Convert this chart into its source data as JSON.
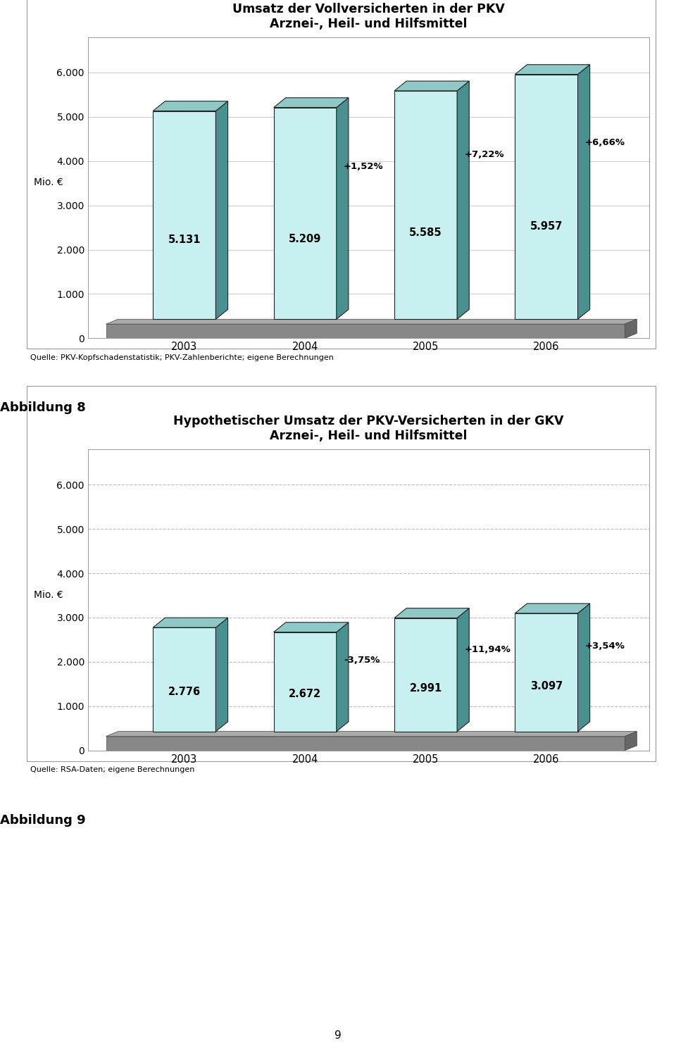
{
  "chart1": {
    "title_line1": "Umsatz der Vollversicherten in der PKV",
    "title_line2": "Arznei-, Heil- und Hilfsmittel",
    "years": [
      "2003",
      "2004",
      "2005",
      "2006"
    ],
    "values": [
      5131,
      5209,
      5585,
      5957
    ],
    "pct_labels": [
      "",
      "+1,52%",
      "+7,22%",
      "+6,66%"
    ],
    "val_labels": [
      "5.131",
      "5.209",
      "5.585",
      "5.957"
    ],
    "ylabel": "Mio. €",
    "yticks": [
      0,
      1000,
      2000,
      3000,
      4000,
      5000,
      6000
    ],
    "ytick_labels": [
      "0",
      "1.000",
      "2.000",
      "3.000",
      "4.000",
      "5.000",
      "6.000"
    ],
    "ylim_max": 6800,
    "source": "Quelle: PKV-Kopfschadenstatistik; PKV-Zahlenberichte; eigene Berechnungen",
    "bar_face_color": "#c8f0f0",
    "bar_side_color": "#4a9090",
    "bar_top_color": "#90c8c8",
    "floor_front_color": "#888888",
    "floor_top_color": "#aaaaaa",
    "floor_right_color": "#666666",
    "grid_color": "#cccccc",
    "grid_linestyle": "solid",
    "chart_bg": "#ffffff"
  },
  "chart2": {
    "title_line1": "Hypothetischer Umsatz der PKV-Versicherten in der GKV",
    "title_line2": "Arznei-, Heil- und Hilfsmittel",
    "years": [
      "2003",
      "2004",
      "2005",
      "2006"
    ],
    "values": [
      2776,
      2672,
      2991,
      3097
    ],
    "pct_labels": [
      "",
      "-3,75%",
      "+11,94%",
      "+3,54%"
    ],
    "val_labels": [
      "2.776",
      "2.672",
      "2.991",
      "3.097"
    ],
    "ylabel": "Mio. €",
    "yticks": [
      0,
      1000,
      2000,
      3000,
      4000,
      5000,
      6000
    ],
    "ytick_labels": [
      "0",
      "1.000",
      "2.000",
      "3.000",
      "4.000",
      "5.000",
      "6.000"
    ],
    "ylim_max": 6800,
    "source": "Quelle: RSA-Daten; eigene Berechnungen",
    "bar_face_color": "#c8f0f0",
    "bar_side_color": "#4a9090",
    "bar_top_color": "#90c8c8",
    "floor_front_color": "#888888",
    "floor_top_color": "#aaaaaa",
    "floor_right_color": "#666666",
    "grid_color": "#bbbbbb",
    "grid_linestyle": "dashed",
    "chart_bg": "#ffffff"
  },
  "abbildung8": "Abbildung 8",
  "abbildung9": "Abbildung 9",
  "page_number": "9",
  "page_bg": "#ffffff",
  "border_color": "#999999"
}
